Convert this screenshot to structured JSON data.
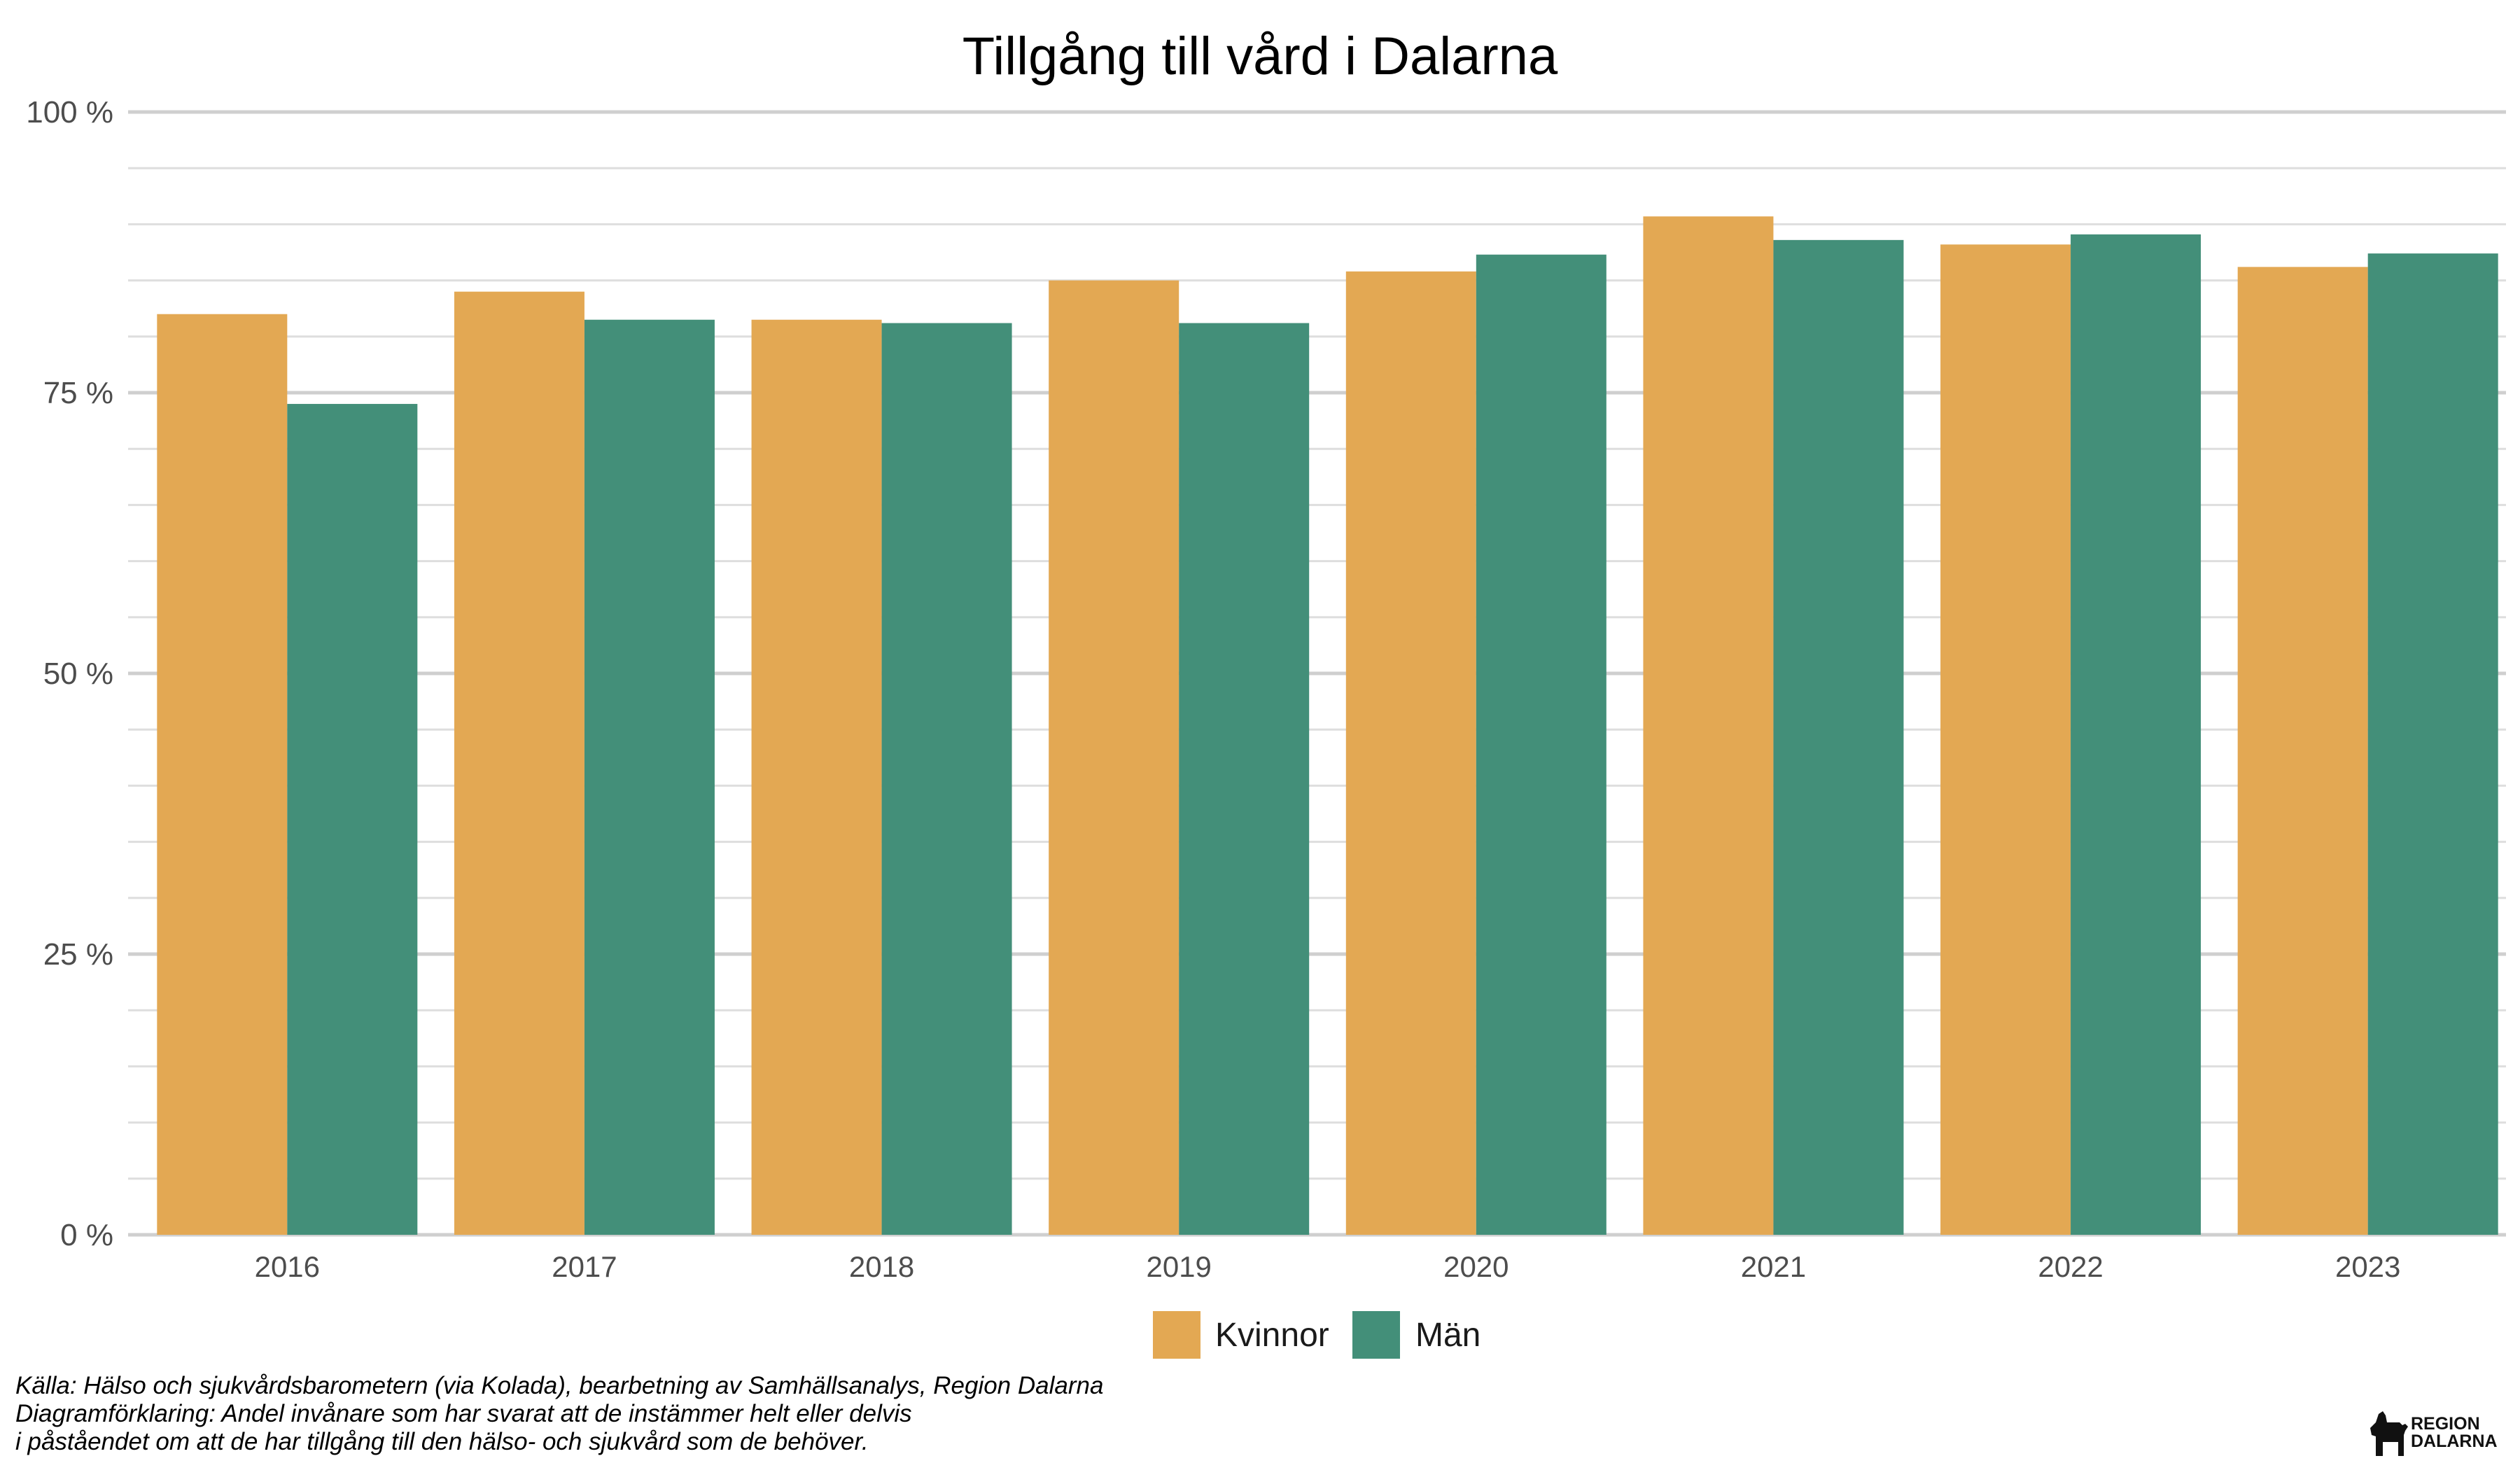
{
  "chart_data": {
    "type": "bar",
    "title": "Tillgång till vård i Dalarna",
    "xlabel": "",
    "ylabel": "",
    "categories": [
      "2016",
      "2017",
      "2018",
      "2019",
      "2020",
      "2021",
      "2022",
      "2023"
    ],
    "series": [
      {
        "name": "Kvinnor",
        "color": "#E3A853",
        "values": [
          82,
          84,
          81.5,
          85,
          85.8,
          90.7,
          88.2,
          86.2
        ]
      },
      {
        "name": "Män",
        "color": "#438F79",
        "values": [
          74,
          81.5,
          81.2,
          81.2,
          87.3,
          88.6,
          89.1,
          87.4
        ]
      }
    ],
    "ylim": [
      0,
      100
    ],
    "yticks": [
      0,
      25,
      50,
      75,
      100
    ],
    "ytick_labels": [
      "0 %",
      "25 %",
      "50 %",
      "75 %",
      "100 %"
    ],
    "grid": true,
    "legend_position": "bottom"
  },
  "caption": {
    "line1": "Källa: Hälso och sjukvårdsbarometern (via Kolada), bearbetning av Samhällsanalys, Region Dalarna",
    "line2": "Diagramförklaring: Andel invånare som har svarat att de instämmer helt eller delvis",
    "line3": "i påståendet om att de har tillgång till den hälso- och sjukvård som de behöver."
  },
  "logo": {
    "line1": "REGION",
    "line2": "DALARNA",
    "icon": "dala-horse-icon"
  }
}
